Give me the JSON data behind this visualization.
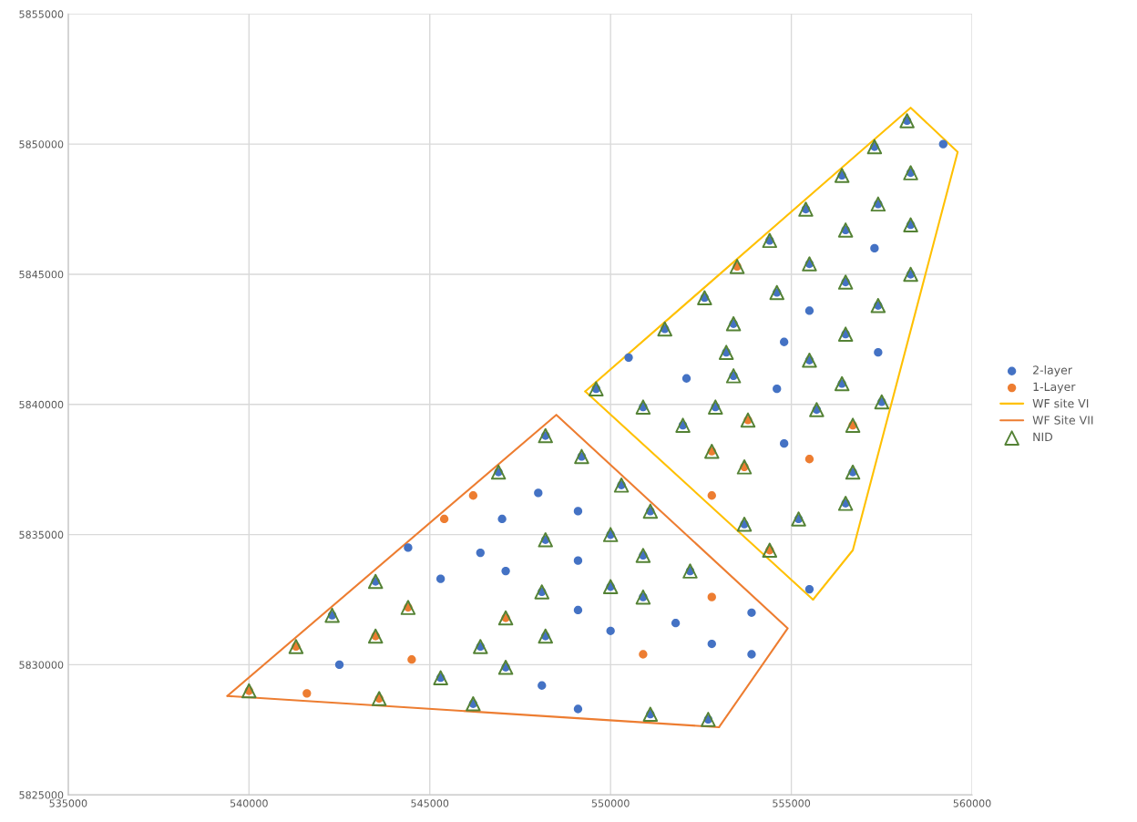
{
  "chart_data": {
    "type": "scatter",
    "xlim": [
      535000,
      560000
    ],
    "ylim": [
      5825000,
      5855000
    ],
    "xticks": [
      535000,
      540000,
      545000,
      550000,
      555000,
      560000
    ],
    "yticks": [
      5825000,
      5830000,
      5835000,
      5840000,
      5845000,
      5850000,
      5855000
    ],
    "grid": true,
    "legend": "right",
    "series": [
      {
        "name": "2-layer",
        "marker": "circle",
        "color": "#4472c4",
        "x": [
          548200,
          549200,
          546900,
          548000,
          549100,
          547000,
          544400,
          548200,
          546400,
          549100,
          547100,
          543500,
          545300,
          548100,
          549100,
          542300,
          548200,
          546400,
          542500,
          547100,
          545300,
          548100,
          546200,
          549100,
          550000,
          550900,
          550300,
          551100,
          550000,
          550900,
          552200,
          551800,
          550000,
          553900,
          552800,
          553900,
          551100,
          552700,
          558200,
          559200,
          557300,
          556400,
          558300,
          557400,
          555400,
          558300,
          556500,
          554400,
          557300,
          555500,
          558300,
          556500,
          552600,
          554600,
          555500,
          557400,
          551500,
          553400,
          556500,
          554800,
          550500,
          553200,
          557400,
          555500,
          552100,
          553400,
          554600,
          556400,
          549600,
          550900,
          552900,
          555700,
          557500,
          552000,
          554800,
          556700,
          556500,
          553700,
          555200,
          555500
        ],
        "values": [
          5838800,
          5838000,
          5837400,
          5836600,
          5835900,
          5835600,
          5834500,
          5834800,
          5834300,
          5834000,
          5833600,
          5833200,
          5833300,
          5832800,
          5832100,
          5831900,
          5831100,
          5830700,
          5830000,
          5829900,
          5829500,
          5829200,
          5828500,
          5828300,
          5835000,
          5834200,
          5836900,
          5835900,
          5833000,
          5832600,
          5833600,
          5831600,
          5831300,
          5832000,
          5830800,
          5830400,
          5828100,
          5827900,
          5850900,
          5850000,
          5849900,
          5848800,
          5848900,
          5847700,
          5847500,
          5846900,
          5846700,
          5846300,
          5846000,
          5845400,
          5845000,
          5844700,
          5844100,
          5844300,
          5843600,
          5843800,
          5842900,
          5843100,
          5842700,
          5842400,
          5841800,
          5842000,
          5842000,
          5841700,
          5841000,
          5841100,
          5840600,
          5840800,
          5840600,
          5839900,
          5839900,
          5839800,
          5840100,
          5839200,
          5838500,
          5837400,
          5836200,
          5835400,
          5835600,
          5832900
        ]
      },
      {
        "name": "1-Layer",
        "marker": "circle",
        "color": "#ed7d31",
        "x": [
          546200,
          545400,
          544400,
          547100,
          543500,
          541300,
          544500,
          540000,
          541600,
          543600,
          552800,
          550900,
          553500,
          553800,
          556700,
          552800,
          555500,
          553700,
          552800,
          554400
        ],
        "values": [
          5836500,
          5835600,
          5832200,
          5831800,
          5831100,
          5830700,
          5830200,
          5829000,
          5828900,
          5828700,
          5832600,
          5830400,
          5845300,
          5839400,
          5839200,
          5838200,
          5837900,
          5837600,
          5836500,
          5834400
        ]
      },
      {
        "name": "WF site VI",
        "type": "line",
        "marker": "none",
        "line_style": "solid",
        "color": "#ffc000",
        "x": [
          549300,
          558300,
          559600,
          556700,
          555600
        ],
        "values": [
          5840500,
          5851400,
          5849700,
          5834400,
          5832500
        ]
      },
      {
        "name": "WF Site VII",
        "type": "line",
        "marker": "none",
        "line_style": "solid",
        "color": "#ed7d31",
        "x": [
          539400,
          548500,
          554900,
          553000
        ],
        "values": [
          5828800,
          5839600,
          5831400,
          5827600
        ]
      },
      {
        "type": "line",
        "marker": "none",
        "line_style": "solid",
        "color": "#ffc000",
        "x": [
          555600,
          549300
        ],
        "values": [
          5832500,
          5840500
        ]
      },
      {
        "type": "line",
        "marker": "none",
        "line_style": "solid",
        "color": "#ed7d31",
        "x": [
          553000,
          539400
        ],
        "values": [
          5827600,
          5828800
        ]
      },
      {
        "name": "NID",
        "marker": "triangle",
        "color": "#548235",
        "x": [
          548200,
          549200,
          546900,
          548200,
          543500,
          548100,
          544400,
          542300,
          547100,
          543500,
          548200,
          546400,
          541300,
          547100,
          545300,
          540000,
          543600,
          546200,
          550000,
          550900,
          550300,
          551100,
          550000,
          550900,
          552200,
          551100,
          552700,
          558200,
          557300,
          556400,
          558300,
          557400,
          555400,
          558300,
          556500,
          554400,
          553500,
          555500,
          558300,
          556500,
          552600,
          554600,
          557400,
          551500,
          553400,
          556500,
          553200,
          555500,
          553400,
          556400,
          549600,
          550900,
          552900,
          555700,
          557500,
          553800,
          556700,
          552000,
          552800,
          553700,
          556700,
          556500,
          553700,
          555200,
          554400
        ],
        "values": [
          5838800,
          5838000,
          5837400,
          5834800,
          5833200,
          5832800,
          5832200,
          5831900,
          5831800,
          5831100,
          5831100,
          5830700,
          5830700,
          5829900,
          5829500,
          5829000,
          5828700,
          5828500,
          5835000,
          5834200,
          5836900,
          5835900,
          5833000,
          5832600,
          5833600,
          5828100,
          5827900,
          5850900,
          5849900,
          5848800,
          5848900,
          5847700,
          5847500,
          5846900,
          5846700,
          5846300,
          5845300,
          5845400,
          5845000,
          5844700,
          5844100,
          5844300,
          5843800,
          5842900,
          5843100,
          5842700,
          5842000,
          5841700,
          5841100,
          5840800,
          5840600,
          5839900,
          5839900,
          5839800,
          5840100,
          5839400,
          5839200,
          5839200,
          5838200,
          5837600,
          5837400,
          5836200,
          5835400,
          5835600,
          5834400
        ]
      }
    ]
  }
}
